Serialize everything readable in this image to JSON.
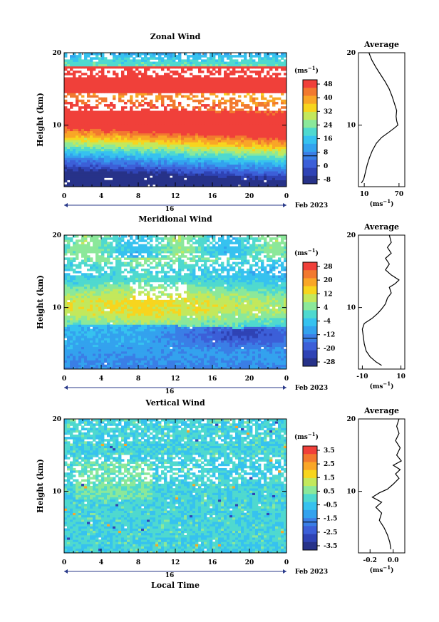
{
  "chart_data": [
    {
      "type": "heatmap",
      "title": "Zonal Wind",
      "ylabel": "Height (km)",
      "x_ticks": [
        "0",
        "4",
        "8",
        "12",
        "16",
        "20",
        "0"
      ],
      "y_ticks": [
        "10",
        "20"
      ],
      "date_label": "16",
      "month_label": "Feb 2023",
      "colorbar": {
        "unit_base": "(ms",
        "unit_exp": "−1",
        "unit_close": ")",
        "labels": [
          "48",
          "40",
          "32",
          "24",
          "16",
          "8",
          "0",
          "-8"
        ],
        "colors": [
          "#f0403a",
          "#f2792f",
          "#f9a627",
          "#f7d51e",
          "#c3e85c",
          "#8be89a",
          "#4fd9cf",
          "#36c2ef",
          "#33a2ee",
          "#3a7ee6",
          "#3c5fd8",
          "#2f43b5",
          "#273289"
        ]
      },
      "profile": {
        "title": "Average",
        "y_ticks": [
          "10",
          "20"
        ],
        "x_ticks": [
          "10",
          "70"
        ],
        "xlabel_base": "(ms",
        "xlabel_exp": "−1",
        "xlabel_close": ")",
        "xlim": [
          0,
          80
        ],
        "ylim": [
          1.5,
          20
        ],
        "points": [
          [
            5,
            2
          ],
          [
            9,
            2.5
          ],
          [
            12,
            3.5
          ],
          [
            15,
            4.5
          ],
          [
            19,
            5.5
          ],
          [
            24,
            6.5
          ],
          [
            31,
            7.5
          ],
          [
            40,
            8.3
          ],
          [
            52,
            9
          ],
          [
            62,
            9.6
          ],
          [
            68,
            10
          ],
          [
            66,
            10.6
          ],
          [
            65,
            11.2
          ],
          [
            66,
            12
          ],
          [
            62,
            13
          ],
          [
            58,
            14
          ],
          [
            53,
            15
          ],
          [
            46,
            16
          ],
          [
            38,
            17
          ],
          [
            30,
            18
          ],
          [
            23,
            19
          ],
          [
            18,
            20
          ]
        ]
      }
    },
    {
      "type": "heatmap",
      "title": "Meridional Wind",
      "ylabel": "Height (km)",
      "x_ticks": [
        "0",
        "4",
        "8",
        "12",
        "16",
        "20",
        "0"
      ],
      "y_ticks": [
        "10",
        "20"
      ],
      "date_label": "16",
      "month_label": "Feb 2023",
      "colorbar": {
        "unit_base": "(ms",
        "unit_exp": "−1",
        "unit_close": ")",
        "labels": [
          "28",
          "20",
          "12",
          "4",
          "-4",
          "-12",
          "-20",
          "-28"
        ],
        "colors": [
          "#f0403a",
          "#f2792f",
          "#f9a627",
          "#f7d51e",
          "#c3e85c",
          "#8be89a",
          "#4fd9cf",
          "#36c2ef",
          "#33a2ee",
          "#3a7ee6",
          "#3c5fd8",
          "#2f43b5",
          "#273289"
        ]
      },
      "profile": {
        "title": "Average",
        "y_ticks": [
          "10",
          "20"
        ],
        "x_ticks": [
          "-10",
          "10"
        ],
        "xlabel_base": "(ms",
        "xlabel_exp": "−1",
        "xlabel_close": ")",
        "xlim": [
          -12,
          12
        ],
        "ylim": [
          1.5,
          20
        ],
        "points": [
          [
            0,
            2
          ],
          [
            -3,
            2.5
          ],
          [
            -6,
            3.2
          ],
          [
            -8,
            4
          ],
          [
            -9,
            5
          ],
          [
            -9.5,
            6
          ],
          [
            -10,
            7
          ],
          [
            -9,
            7.8
          ],
          [
            -5,
            8.5
          ],
          [
            -2,
            9.2
          ],
          [
            0,
            9.8
          ],
          [
            2,
            10.5
          ],
          [
            3,
            11.3
          ],
          [
            5,
            12
          ],
          [
            4,
            12.8
          ],
          [
            7,
            13.3
          ],
          [
            9,
            13.8
          ],
          [
            5,
            14.5
          ],
          [
            2,
            15.2
          ],
          [
            4,
            16
          ],
          [
            2,
            16.8
          ],
          [
            5,
            17.5
          ],
          [
            3,
            18.3
          ],
          [
            5,
            19
          ],
          [
            4,
            20
          ]
        ]
      }
    },
    {
      "type": "heatmap",
      "title": "Vertical Wind",
      "ylabel": "Height (km)",
      "xlabel": "Local Time",
      "x_ticks": [
        "0",
        "4",
        "8",
        "12",
        "16",
        "20",
        "0"
      ],
      "y_ticks": [
        "10",
        "20"
      ],
      "date_label": "16",
      "month_label": "Feb 2023",
      "colorbar": {
        "unit_base": "(ms",
        "unit_exp": "−1",
        "unit_close": ")",
        "labels": [
          "3.5",
          "2.5",
          "1.5",
          "0.5",
          "-0.5",
          "-1.5",
          "-2.5",
          "-3.5"
        ],
        "colors": [
          "#f0403a",
          "#f2792f",
          "#f9a627",
          "#f7d51e",
          "#c3e85c",
          "#8be89a",
          "#4fd9cf",
          "#36c2ef",
          "#33a2ee",
          "#3a7ee6",
          "#3c5fd8",
          "#2f43b5",
          "#273289"
        ]
      },
      "profile": {
        "title": "Average",
        "y_ticks": [
          "10",
          "20"
        ],
        "x_ticks": [
          "-0.2",
          "0.0"
        ],
        "xlabel_base": "(ms",
        "xlabel_exp": "−1",
        "xlabel_close": ")",
        "xlim": [
          -0.3,
          0.1
        ],
        "ylim": [
          1.5,
          20
        ],
        "points": [
          [
            -0.02,
            2
          ],
          [
            -0.03,
            3
          ],
          [
            -0.05,
            4
          ],
          [
            -0.08,
            5
          ],
          [
            -0.12,
            6
          ],
          [
            -0.1,
            7
          ],
          [
            -0.15,
            7.8
          ],
          [
            -0.1,
            8.5
          ],
          [
            -0.18,
            9.2
          ],
          [
            -0.12,
            9.8
          ],
          [
            -0.05,
            10.3
          ],
          [
            0.0,
            11
          ],
          [
            0.05,
            11.8
          ],
          [
            0.02,
            12.4
          ],
          [
            0.06,
            13
          ],
          [
            0.0,
            13.6
          ],
          [
            0.07,
            14.2
          ],
          [
            0.03,
            15
          ],
          [
            0.06,
            16
          ],
          [
            0.02,
            17
          ],
          [
            0.05,
            18
          ],
          [
            0.03,
            19
          ],
          [
            0.05,
            20
          ]
        ]
      }
    }
  ]
}
